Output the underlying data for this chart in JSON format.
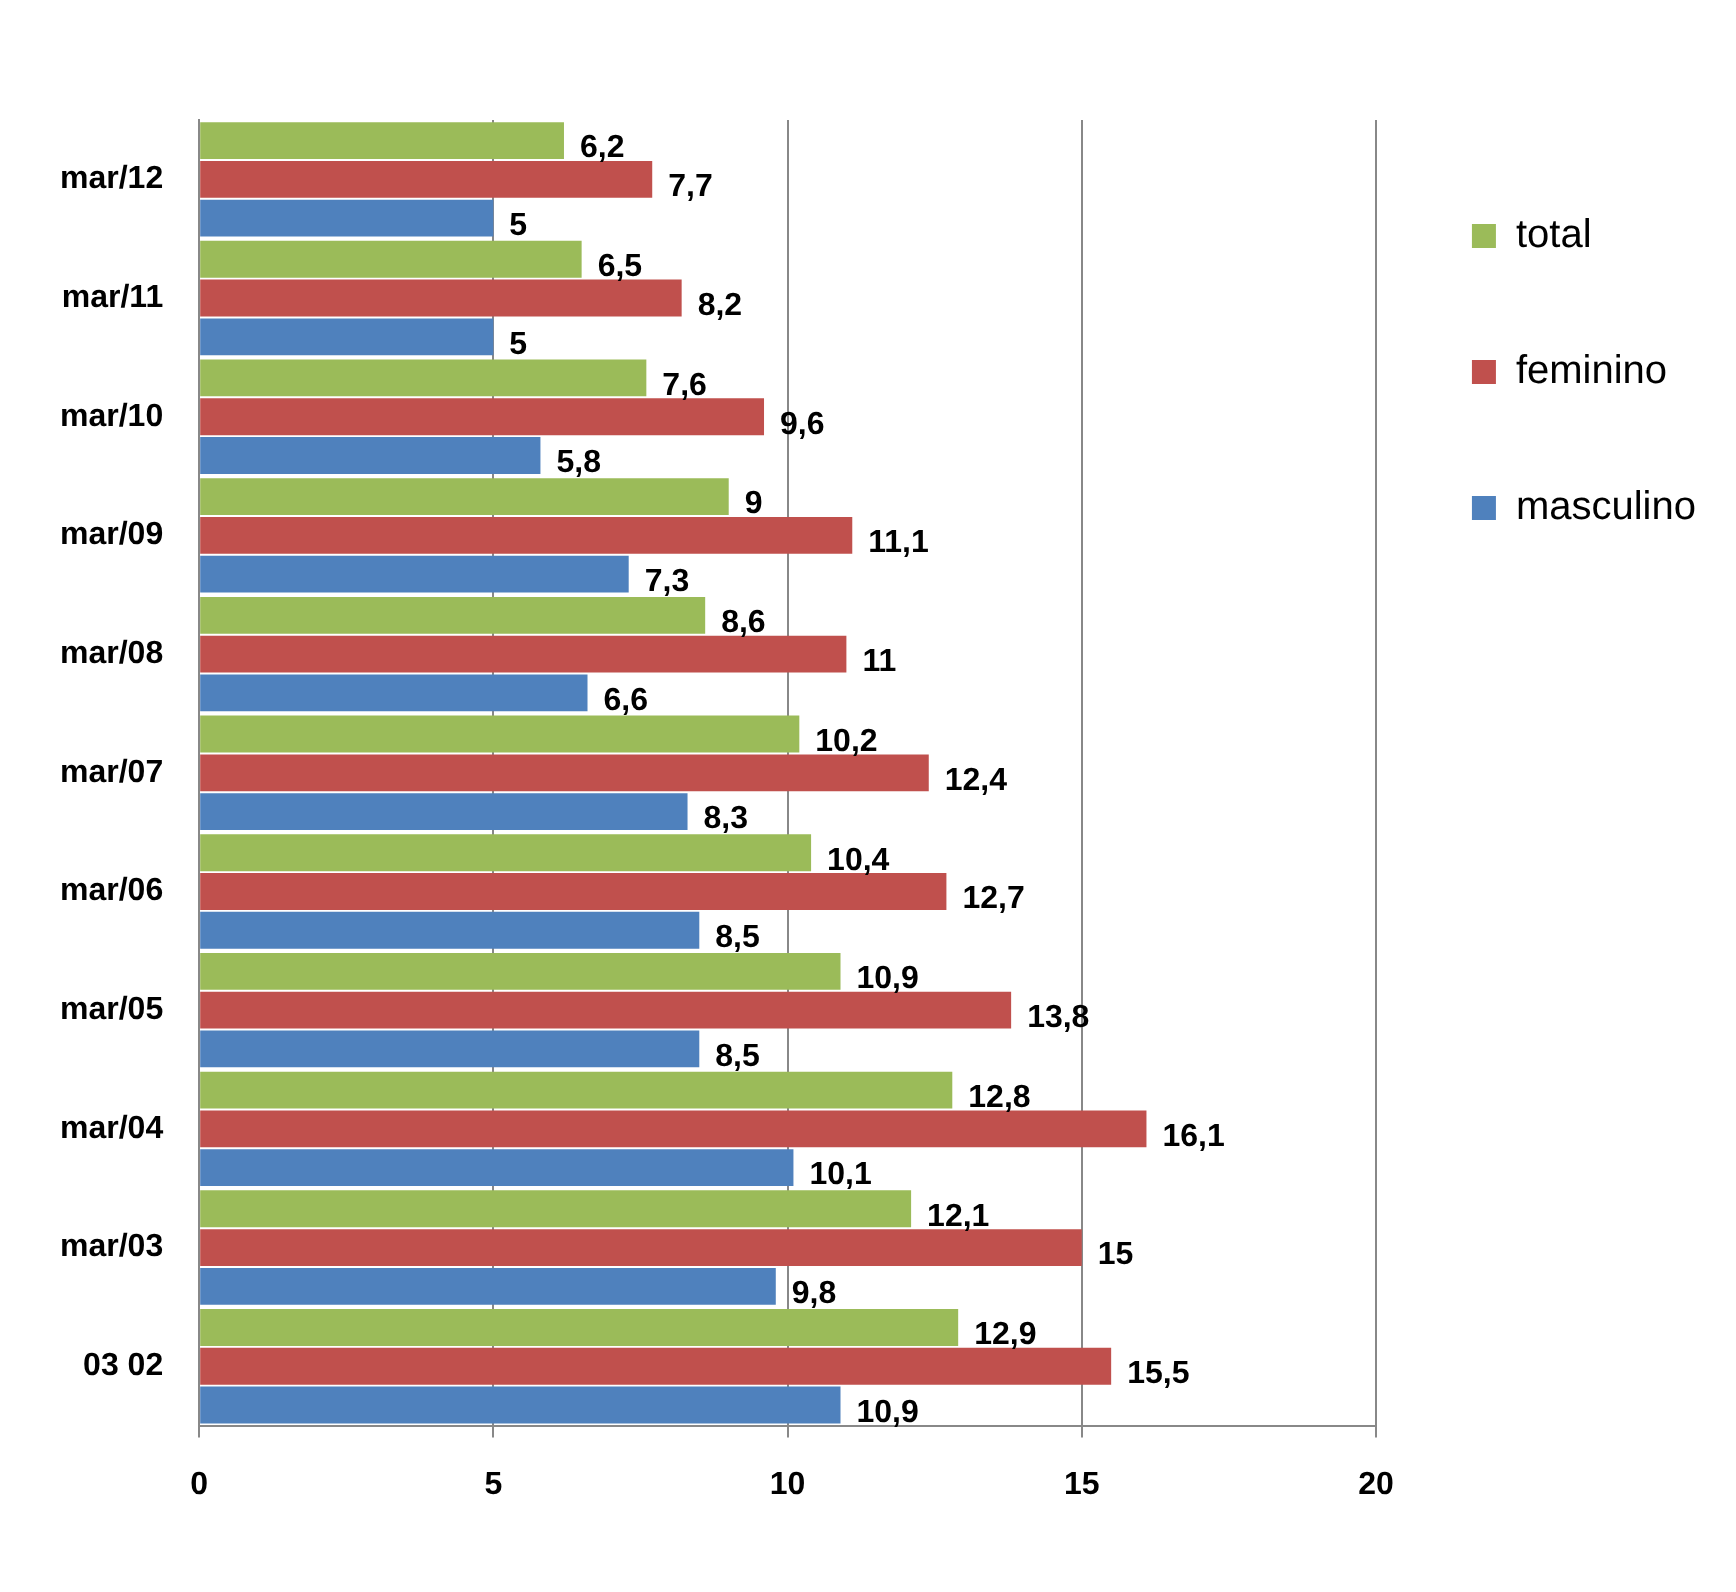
{
  "chart_data": {
    "type": "bar",
    "orientation": "horizontal",
    "categories": [
      "mar/12",
      "mar/11",
      "mar/10",
      "mar/09",
      "mar/08",
      "mar/07",
      "mar/06",
      "mar/05",
      "mar/04",
      "mar/03",
      "03 02"
    ],
    "series": [
      {
        "name": "total",
        "color": "#9bbb59",
        "values": [
          6.2,
          6.5,
          7.6,
          9,
          8.6,
          10.2,
          10.4,
          10.9,
          12.8,
          12.1,
          12.9
        ],
        "value_labels": [
          "6,2",
          "6,5",
          "7,6",
          "9",
          "8,6",
          "10,2",
          "10,4",
          "10,9",
          "12,8",
          "12,1",
          "12,9"
        ]
      },
      {
        "name": "feminino",
        "color": "#c0504d",
        "values": [
          7.7,
          8.2,
          9.6,
          11.1,
          11,
          12.4,
          12.7,
          13.8,
          16.1,
          15,
          15.5
        ],
        "value_labels": [
          "7,7",
          "8,2",
          "9,6",
          "11,1",
          "11",
          "12,4",
          "12,7",
          "13,8",
          "16,1",
          "15",
          "15,5"
        ]
      },
      {
        "name": "masculino",
        "color": "#4f81bd",
        "values": [
          5,
          5,
          5.8,
          7.3,
          6.6,
          8.3,
          8.5,
          8.5,
          10.1,
          9.8,
          10.9
        ],
        "value_labels": [
          "5",
          "5",
          "5,8",
          "7,3",
          "6,6",
          "8,3",
          "8,5",
          "8,5",
          "10,1",
          "9,8",
          "10,9"
        ]
      }
    ],
    "xlim": [
      0,
      20
    ],
    "xticks": [
      0,
      5,
      10,
      15,
      20
    ],
    "grid": "x",
    "legend": "top right"
  }
}
